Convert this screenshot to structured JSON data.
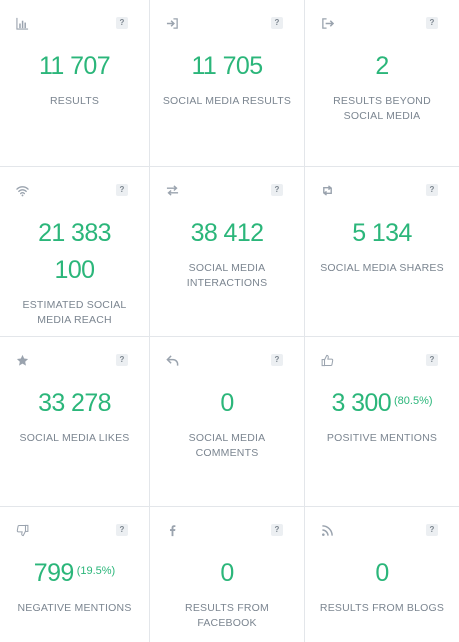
{
  "help_symbol": "?",
  "cards": [
    {
      "icon": "bar-chart-icon",
      "value": "11 707",
      "label": "RESULTS"
    },
    {
      "icon": "sign-in-icon",
      "value": "11 705",
      "label": "SOCIAL MEDIA RESULTS"
    },
    {
      "icon": "sign-out-icon",
      "value": "2",
      "label": "RESULTS BEYOND SOCIAL MEDIA"
    },
    {
      "icon": "wifi-icon",
      "value_line1": "21 383",
      "value_line2": "100",
      "label": "ESTIMATED SOCIAL MEDIA REACH"
    },
    {
      "icon": "exchange-icon",
      "value": "38 412",
      "label": "SOCIAL MEDIA INTERACTIONS"
    },
    {
      "icon": "retweet-icon",
      "value": "5 134",
      "label": "SOCIAL MEDIA SHARES"
    },
    {
      "icon": "star-icon",
      "value": "33 278",
      "label": "SOCIAL MEDIA LIKES"
    },
    {
      "icon": "reply-icon",
      "value": "0",
      "label": "SOCIAL MEDIA COMMENTS"
    },
    {
      "icon": "thumbs-up-icon",
      "value": "3 300",
      "percent": "(80.5%)",
      "label": "POSITIVE MENTIONS"
    },
    {
      "icon": "thumbs-down-icon",
      "value": "799",
      "percent": "(19.5%)",
      "label": "NEGATIVE MENTIONS"
    },
    {
      "icon": "facebook-icon",
      "value": "0",
      "label": "RESULTS FROM FACEBOOK"
    },
    {
      "icon": "rss-icon",
      "value": "0",
      "label": "RESULTS FROM BLOGS"
    }
  ],
  "colors": {
    "value": "#2bb67a",
    "label": "#7b8590",
    "icon": "#9aa3ae",
    "border": "#e3e6ea"
  }
}
